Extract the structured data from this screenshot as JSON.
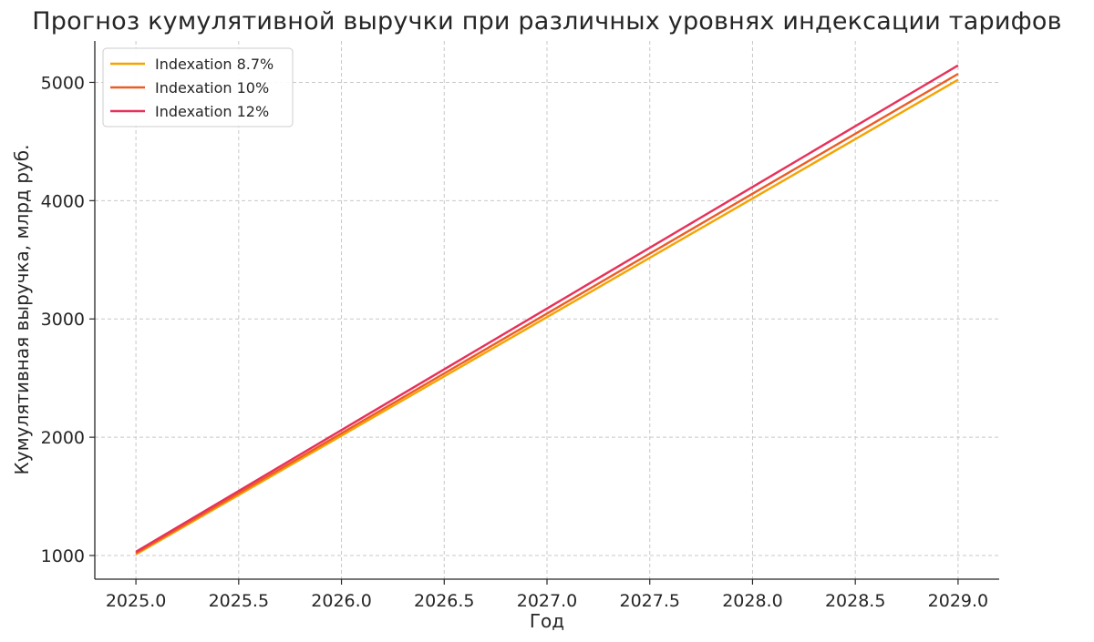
{
  "chart_data": {
    "type": "line",
    "title": "Прогноз кумулятивной выручки при различных уровнях индексации тарифов",
    "xlabel": "Год",
    "ylabel": "Кумулятивная выручка, млрд руб.",
    "xlim": [
      2024.8,
      2029.2
    ],
    "ylim": [
      800,
      5350
    ],
    "xticks": [
      2025.0,
      2025.5,
      2026.0,
      2026.5,
      2027.0,
      2027.5,
      2028.0,
      2028.5,
      2029.0
    ],
    "xtick_labels": [
      "2025.0",
      "2025.5",
      "2026.0",
      "2026.5",
      "2027.0",
      "2027.5",
      "2028.0",
      "2028.5",
      "2029.0"
    ],
    "yticks": [
      1000,
      2000,
      3000,
      4000,
      5000
    ],
    "ytick_labels": [
      "1000",
      "2000",
      "3000",
      "4000",
      "5000"
    ],
    "grid": true,
    "legend_position": "top-left",
    "series": [
      {
        "name": "Indexation 8.7%",
        "color": "#F5A300",
        "x": [
          2025,
          2026,
          2027,
          2028,
          2029
        ],
        "y": [
          1010,
          2013,
          3016,
          4019,
          5022
        ]
      },
      {
        "name": "Indexation 10%",
        "color": "#EC5D24",
        "x": [
          2025,
          2026,
          2027,
          2028,
          2029
        ],
        "y": [
          1020,
          2033,
          3046,
          4059,
          5072
        ]
      },
      {
        "name": "Indexation 12%",
        "color": "#E8305A",
        "x": [
          2025,
          2026,
          2027,
          2028,
          2029
        ],
        "y": [
          1032,
          2060,
          3088,
          4116,
          5144
        ]
      }
    ]
  }
}
